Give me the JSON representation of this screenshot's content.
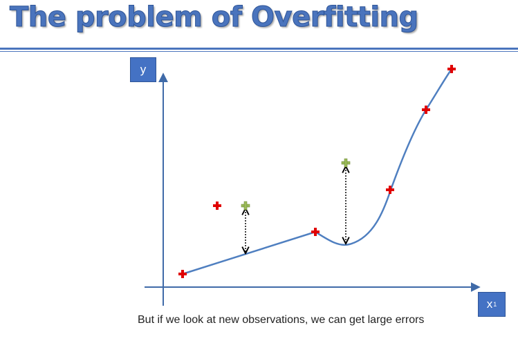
{
  "title": "The problem of Overfitting",
  "axes": {
    "y_label": "y",
    "x_label": "x",
    "x_subscript": "1"
  },
  "caption": "But if we look at new observations, we can get large errors",
  "colors": {
    "title": "#4a74bd",
    "axis": "#3f6aa8",
    "curve": "#4f7fc0",
    "training_point": "#e00000",
    "new_point": "#9bbb59",
    "axis_box": "#4472c4"
  }
}
